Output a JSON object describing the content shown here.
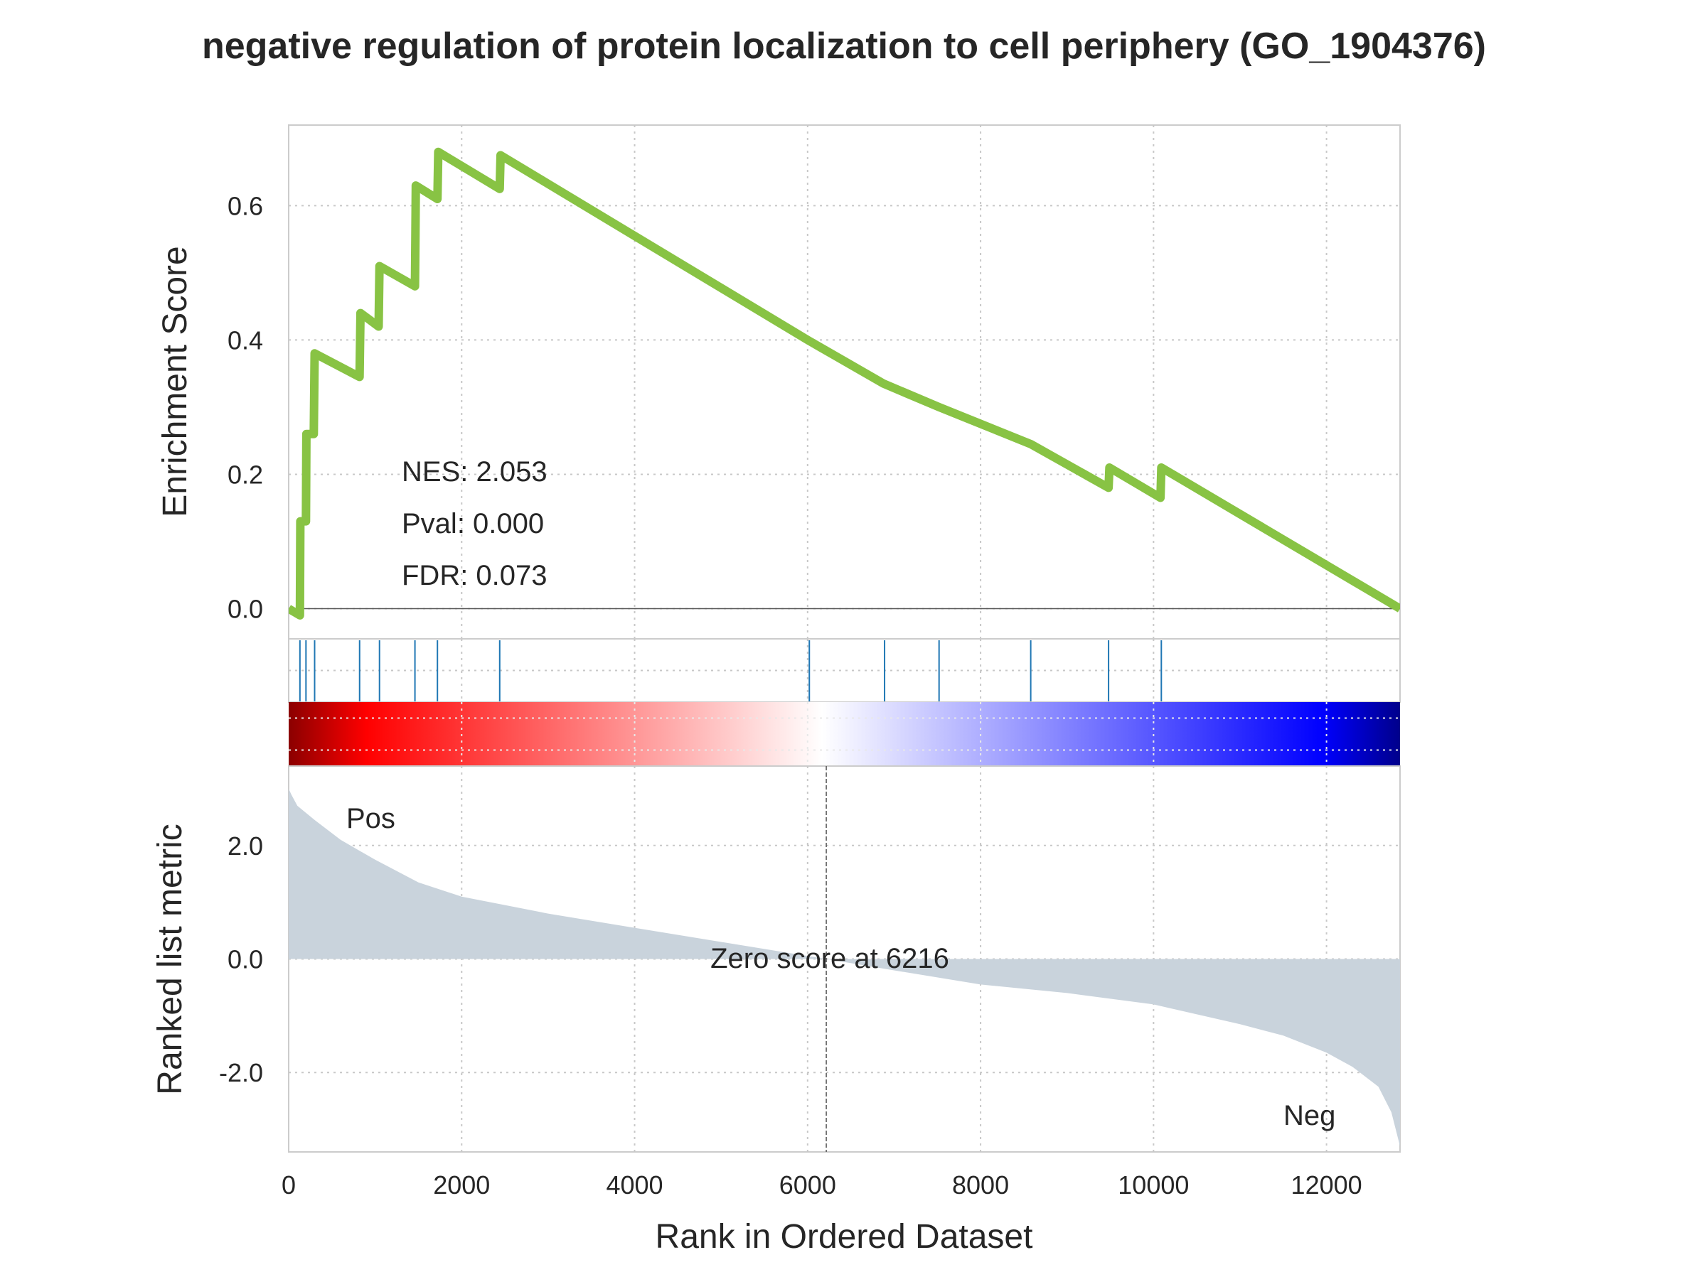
{
  "chart_data": {
    "type": "line",
    "title": "negative regulation of protein localization to cell periphery (GO_1904376)",
    "xlabel": "Rank in Ordered Dataset",
    "xlim": [
      0,
      12850
    ],
    "x_ticks": [
      0,
      2000,
      4000,
      6000,
      8000,
      10000,
      12000
    ],
    "x_tick_labels": [
      "0",
      "2000",
      "4000",
      "6000",
      "8000",
      "10000",
      "12000"
    ],
    "grid": true,
    "stats": {
      "nes": "NES: 2.053",
      "pval": "Pval: 0.000",
      "fdr": "FDR: 0.073"
    },
    "colors": {
      "es_line": "#88c344",
      "hit_lines": "#1f77b4",
      "metric_fill": "#c9d3dc",
      "pos_label": "#ff0000",
      "neg_label": "#0000ff",
      "heat_dark_red": "#8b0000",
      "heat_red": "#ff0000",
      "heat_white": "#ffffff",
      "heat_blue": "#0000ff",
      "heat_dark_blue": "#00008b"
    },
    "enrichment": {
      "ylabel": "Enrichment Score",
      "ylim": [
        -0.045,
        0.72
      ],
      "y_ticks": [
        0.0,
        0.2,
        0.4,
        0.6
      ],
      "y_tick_labels": [
        "0.0",
        "0.2",
        "0.4",
        "0.6"
      ],
      "series": [
        {
          "x": [
            0,
            130,
            135,
            200,
            205,
            290,
            300,
            820,
            830,
            1040,
            1050,
            1460,
            1465,
            1470,
            1720,
            1730,
            2440,
            2450,
            6000,
            6880,
            7520,
            8580,
            9480,
            9490,
            10080,
            10090,
            12850
          ],
          "y": [
            0.0,
            -0.01,
            0.13,
            0.13,
            0.26,
            0.26,
            0.38,
            0.345,
            0.44,
            0.42,
            0.51,
            0.48,
            0.55,
            0.63,
            0.61,
            0.68,
            0.625,
            0.675,
            0.4,
            0.335,
            0.3,
            0.245,
            0.18,
            0.21,
            0.165,
            0.21,
            0.0
          ]
        }
      ]
    },
    "hits": [
      130,
      200,
      300,
      820,
      1050,
      1460,
      1720,
      2440,
      6020,
      6890,
      7520,
      8580,
      9480,
      10090
    ],
    "ranked_metric": {
      "ylabel": "Ranked list metric",
      "ylim": [
        -3.4,
        3.4
      ],
      "y_ticks": [
        2.0,
        0.0,
        -2.0
      ],
      "y_tick_labels": [
        "2.0",
        "0.0",
        "-2.0"
      ],
      "x": [
        0,
        30,
        100,
        300,
        600,
        1000,
        1500,
        2000,
        3000,
        4000,
        5000,
        6216,
        7000,
        8000,
        9000,
        10000,
        11000,
        11500,
        12000,
        12300,
        12600,
        12750,
        12850
      ],
      "y": [
        3.0,
        2.9,
        2.7,
        2.45,
        2.1,
        1.75,
        1.35,
        1.1,
        0.8,
        0.55,
        0.3,
        0.0,
        -0.2,
        -0.45,
        -0.6,
        -0.8,
        -1.15,
        -1.35,
        -1.65,
        -1.9,
        -2.25,
        -2.7,
        -3.3
      ],
      "pos_label": "Pos",
      "neg_label": "Neg",
      "zero_score_text": "Zero score at 6216",
      "zero_rank": 6216
    }
  }
}
